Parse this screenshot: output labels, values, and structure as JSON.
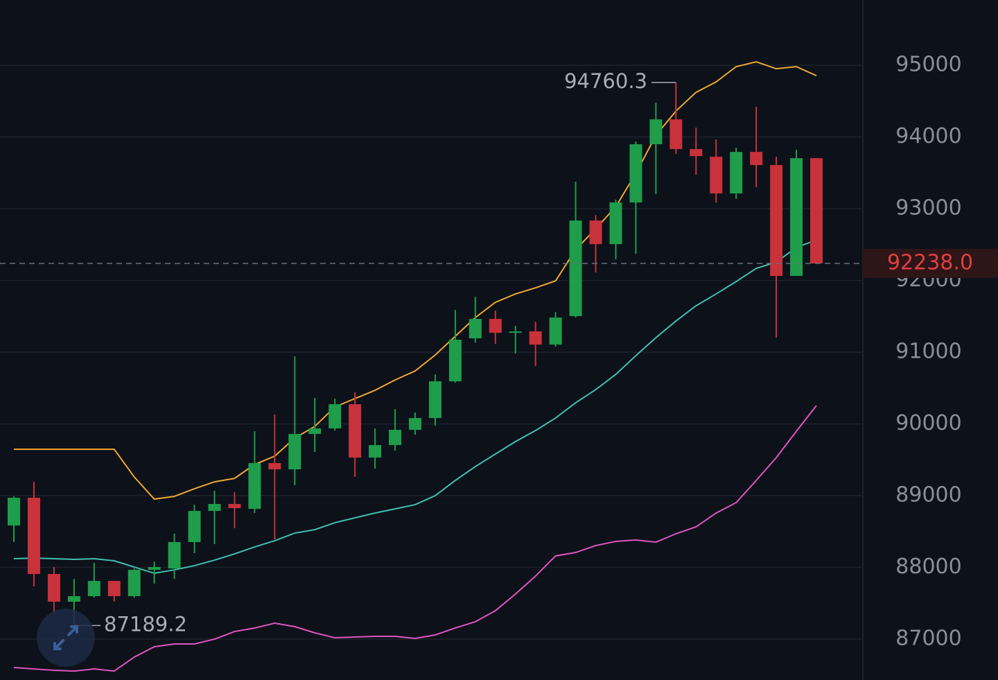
{
  "chart_data": {
    "type": "candlestick",
    "up_color": "#1f9d4a",
    "down_color": "#c8323a",
    "open": [
      88584,
      88971,
      87908,
      87522,
      87599,
      87811,
      87599,
      87966,
      87985,
      88353,
      88787,
      88884,
      88816,
      89454,
      89367,
      89860,
      89937,
      90275,
      89531,
      89705,
      89918,
      90082,
      90594,
      91193,
      91464,
      91270,
      91290,
      91106,
      91503,
      92836,
      92507,
      93087,
      93899,
      94246,
      93831,
      93725,
      93213,
      93792,
      93609,
      92063,
      93705
    ],
    "high": [
      88990,
      89193,
      88005,
      87840,
      88063,
      87811,
      87985,
      88082,
      88469,
      88874,
      89068,
      89048,
      89898,
      90130,
      90942,
      90362,
      90353,
      90440,
      89937,
      90208,
      90159,
      90691,
      91589,
      91773,
      91580,
      91367,
      91425,
      91560,
      93377,
      92913,
      93126,
      93937,
      94478,
      94760.3,
      94130,
      93966,
      93850,
      94420,
      93725,
      93821,
      93705
    ],
    "low": [
      88353,
      87734,
      87357,
      87189.2,
      87580,
      87522,
      87580,
      87773,
      87840,
      88198,
      88324,
      88546,
      88758,
      88391,
      89145,
      89609,
      89908,
      89261,
      89377,
      89628,
      89850,
      89976,
      90575,
      91135,
      91116,
      90981,
      90807,
      91077,
      91483,
      92111,
      92295,
      92372,
      93203,
      93763,
      93473,
      93087,
      93135,
      93300,
      91203,
      92063,
      92238
    ],
    "close": [
      88971,
      87908,
      87522,
      87599,
      87811,
      87599,
      87966,
      88005,
      88353,
      88787,
      88884,
      88826,
      89454,
      89367,
      89860,
      89937,
      90275,
      89531,
      89705,
      89918,
      90082,
      90594,
      91174,
      91464,
      91270,
      91290,
      91106,
      91483,
      92836,
      92507,
      93087,
      93899,
      94246,
      93831,
      93734,
      93213,
      93792,
      93609,
      92063,
      93705,
      92238
    ],
    "lines": [
      {
        "color": "#f0a830",
        "values": [
          89647,
          89647,
          89647,
          89647,
          89647,
          89647,
          89261,
          88952,
          88990,
          89097,
          89193,
          89241,
          89435,
          89551,
          89802,
          89966,
          90237,
          90353,
          90469,
          90613,
          90739,
          90961,
          91222,
          91483,
          91696,
          91812,
          91898,
          91995,
          92430,
          92720,
          93029,
          93493,
          94024,
          94362,
          94623,
          94768,
          94981,
          95048,
          94952,
          94981,
          94855
        ]
      },
      {
        "color": "#3fc1b0",
        "values": [
          88121,
          88130,
          88121,
          88111,
          88121,
          88092,
          88005,
          87918,
          87966,
          88024,
          88101,
          88188,
          88285,
          88372,
          88478,
          88526,
          88623,
          88691,
          88758,
          88816,
          88874,
          89000,
          89212,
          89406,
          89580,
          89754,
          89908,
          90082,
          90295,
          90478,
          90691,
          90952,
          91203,
          91435,
          91647,
          91812,
          91985,
          92169,
          92256,
          92459,
          92565
        ]
      },
      {
        "color": "#e055c0",
        "values": [
          86604,
          86584,
          86565,
          86555,
          86584,
          86555,
          86749,
          86894,
          86932,
          86932,
          87000,
          87106,
          87155,
          87222,
          87174,
          87087,
          87019,
          87029,
          87039,
          87039,
          87010,
          87058,
          87155,
          87242,
          87396,
          87628,
          87879,
          88160,
          88208,
          88304,
          88362,
          88382,
          88352,
          88469,
          88565,
          88758,
          88903,
          89212,
          89531,
          89898,
          90256
        ]
      }
    ],
    "ylim": [
      86430,
      95910
    ],
    "yticks": [
      87000,
      88000,
      89000,
      90000,
      91000,
      92000,
      93000,
      94000,
      95000
    ],
    "grid": true,
    "high_marker": 94760.3,
    "low_marker": 87189.2,
    "last_price": {
      "value": 92238,
      "label": "92238.0"
    }
  }
}
